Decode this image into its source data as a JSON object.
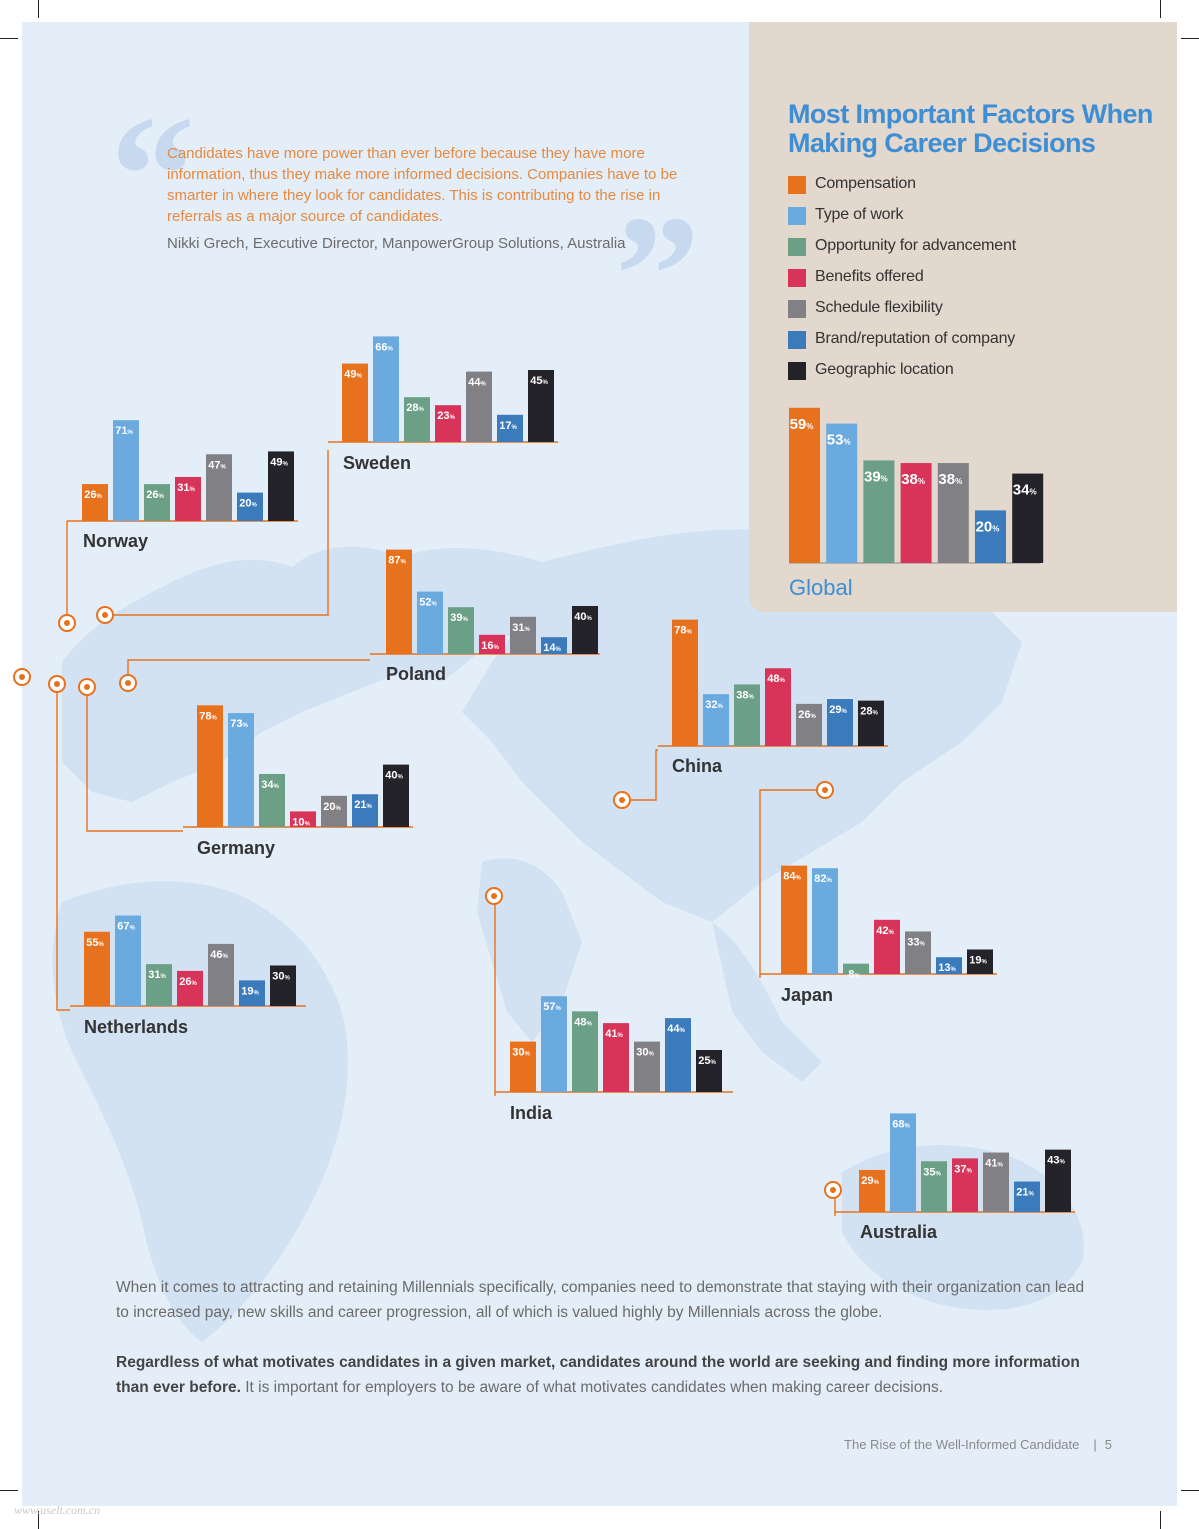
{
  "colors": {
    "compensation": "#e8711d",
    "type_of_work": "#6aaadf",
    "advancement": "#6b9f86",
    "benefits": "#d8345a",
    "schedule": "#818185",
    "brand": "#3c7bbb",
    "location": "#232329",
    "connector": "#e8711d",
    "title": "#3d8ed4"
  },
  "quote": {
    "body": "Candidates have more power than ever before because they have more information, thus they make more informed decisions. Companies have to be smarter in where they look for candidates. This is contributing to the rise in referrals as a major source of candidates.",
    "attribution": "Nikki Grech, Executive Director, ManpowerGroup Solutions, Australia"
  },
  "legend": {
    "title": "Most Important Factors When Making Career Decisions",
    "items": [
      {
        "label": "Compensation",
        "color_key": "compensation"
      },
      {
        "label": "Type of work",
        "color_key": "type_of_work"
      },
      {
        "label": "Opportunity for advancement",
        "color_key": "advancement"
      },
      {
        "label": "Benefits offered",
        "color_key": "benefits"
      },
      {
        "label": "Schedule flexibility",
        "color_key": "schedule"
      },
      {
        "label": "Brand/reputation of company",
        "color_key": "brand"
      },
      {
        "label": "Geographic location",
        "color_key": "location"
      }
    ]
  },
  "chart_data": [
    {
      "type": "bar",
      "title": "Global",
      "series": [
        "Compensation",
        "Type of work",
        "Opportunity for advancement",
        "Benefits offered",
        "Schedule flexibility",
        "Brand/reputation of company",
        "Geographic location"
      ],
      "values": [
        59,
        53,
        39,
        38,
        38,
        20,
        34
      ],
      "unit": "%"
    },
    {
      "type": "bar",
      "title": "Norway",
      "series": [
        "Compensation",
        "Type of work",
        "Opportunity for advancement",
        "Benefits offered",
        "Schedule flexibility",
        "Brand/reputation of company",
        "Geographic location"
      ],
      "values": [
        26,
        71,
        26,
        31,
        47,
        20,
        49
      ],
      "unit": "%"
    },
    {
      "type": "bar",
      "title": "Sweden",
      "series": [
        "Compensation",
        "Type of work",
        "Opportunity for advancement",
        "Benefits offered",
        "Schedule flexibility",
        "Brand/reputation of company",
        "Geographic location"
      ],
      "values": [
        49,
        66,
        28,
        23,
        44,
        17,
        45
      ],
      "unit": "%"
    },
    {
      "type": "bar",
      "title": "Poland",
      "series": [
        "Compensation",
        "Type of work",
        "Opportunity for advancement",
        "Benefits offered",
        "Schedule flexibility",
        "Brand/reputation of company",
        "Geographic location"
      ],
      "values": [
        87,
        52,
        39,
        16,
        31,
        14,
        40
      ],
      "unit": "%"
    },
    {
      "type": "bar",
      "title": "Germany",
      "series": [
        "Compensation",
        "Type of work",
        "Opportunity for advancement",
        "Benefits offered",
        "Schedule flexibility",
        "Brand/reputation of company",
        "Geographic location"
      ],
      "values": [
        78,
        73,
        34,
        10,
        20,
        21,
        40
      ],
      "unit": "%"
    },
    {
      "type": "bar",
      "title": "Netherlands",
      "series": [
        "Compensation",
        "Type of work",
        "Opportunity for advancement",
        "Benefits offered",
        "Schedule flexibility",
        "Brand/reputation of company",
        "Geographic location"
      ],
      "values": [
        55,
        67,
        31,
        26,
        46,
        19,
        30
      ],
      "unit": "%"
    },
    {
      "type": "bar",
      "title": "China",
      "series": [
        "Compensation",
        "Type of work",
        "Opportunity for advancement",
        "Benefits offered",
        "Schedule flexibility",
        "Brand/reputation of company",
        "Geographic location"
      ],
      "values": [
        78,
        32,
        38,
        48,
        26,
        29,
        28
      ],
      "unit": "%"
    },
    {
      "type": "bar",
      "title": "Japan",
      "series": [
        "Compensation",
        "Type of work",
        "Opportunity for advancement",
        "Benefits offered",
        "Schedule flexibility",
        "Brand/reputation of company",
        "Geographic location"
      ],
      "values": [
        84,
        82,
        8,
        42,
        33,
        13,
        19
      ],
      "unit": "%"
    },
    {
      "type": "bar",
      "title": "India",
      "series": [
        "Compensation",
        "Type of work",
        "Opportunity for advancement",
        "Benefits offered",
        "Schedule flexibility",
        "Brand/reputation of company",
        "Geographic location"
      ],
      "values": [
        30,
        57,
        48,
        41,
        30,
        44,
        25
      ],
      "unit": "%"
    },
    {
      "type": "bar",
      "title": "Australia",
      "series": [
        "Compensation",
        "Type of work",
        "Opportunity for advancement",
        "Benefits offered",
        "Schedule flexibility",
        "Brand/reputation of company",
        "Geographic location"
      ],
      "values": [
        29,
        68,
        35,
        37,
        41,
        21,
        43
      ],
      "unit": "%"
    }
  ],
  "body": {
    "paragraph1": "When it comes to attracting and retaining Millennials specifically, companies need to demonstrate that staying with their organization can lead to increased pay, new skills and career progression, all of which is valued highly by Millennials across the globe.",
    "paragraph2_bold": "Regardless of what motivates candidates in a given market, candidates around the world are seeking and finding more information than ever before.",
    "paragraph2_rest": " It is important for employers to be aware of what motivates candidates when making career decisions."
  },
  "footer": {
    "title": "The Rise of the Well-Informed Candidate",
    "separator": "|",
    "page": "5"
  },
  "watermark": "www.uselt.com.cn"
}
